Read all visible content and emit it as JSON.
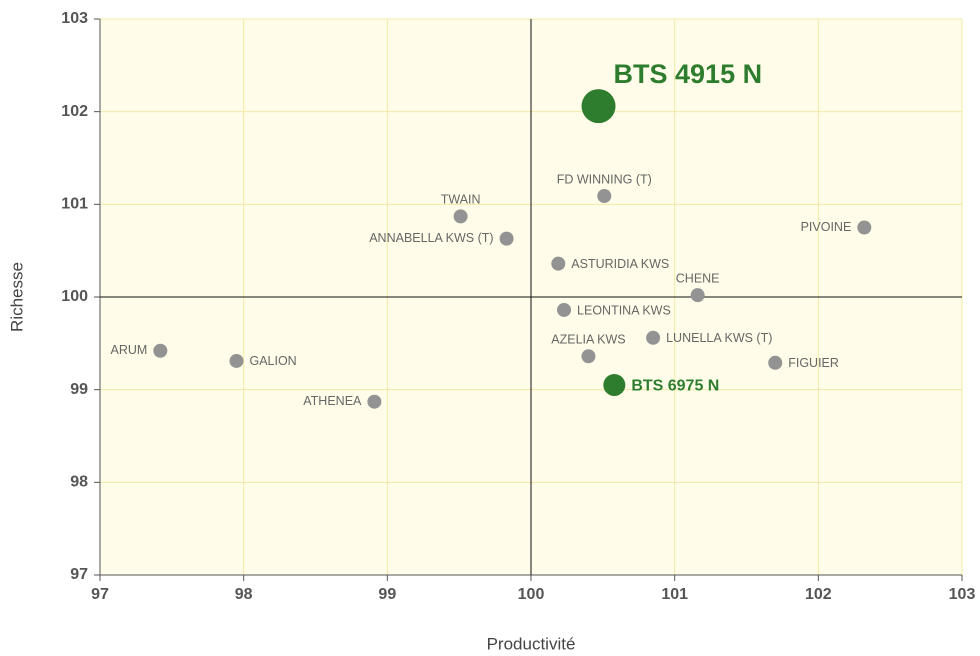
{
  "chart_data": {
    "type": "scatter",
    "xlabel": "Productivité",
    "ylabel": "Richesse",
    "xlim": [
      97,
      103
    ],
    "ylim": [
      97,
      103
    ],
    "xticks": [
      97,
      98,
      99,
      100,
      101,
      102,
      103
    ],
    "yticks": [
      97,
      98,
      99,
      100,
      101,
      102,
      103
    ],
    "grid": true,
    "reference_lines": {
      "x": 100,
      "y": 100
    },
    "points": [
      {
        "label": "BTS 4915 N",
        "x": 100.47,
        "y": 102.06,
        "color": "#2e7d2e"
      },
      {
        "label": "FD WINNING (T)",
        "x": 100.51,
        "y": 101.09,
        "color": "#939393"
      },
      {
        "label": "TWAIN",
        "x": 99.51,
        "y": 100.87,
        "color": "#939393"
      },
      {
        "label": "ANNABELLA KWS (T)",
        "x": 99.83,
        "y": 100.63,
        "color": "#939393"
      },
      {
        "label": "PIVOINE",
        "x": 102.32,
        "y": 100.75,
        "color": "#939393"
      },
      {
        "label": "ASTURIDIA KWS",
        "x": 100.19,
        "y": 100.36,
        "color": "#939393"
      },
      {
        "label": "CHENE",
        "x": 101.16,
        "y": 100.02,
        "color": "#939393"
      },
      {
        "label": "LEONTINA KWS",
        "x": 100.23,
        "y": 99.86,
        "color": "#939393"
      },
      {
        "label": "AZELIA KWS",
        "x": 100.4,
        "y": 99.36,
        "color": "#939393"
      },
      {
        "label": "LUNELLA KWS (T)",
        "x": 100.85,
        "y": 99.56,
        "color": "#939393"
      },
      {
        "label": "FIGUIER",
        "x": 101.7,
        "y": 99.29,
        "color": "#939393"
      },
      {
        "label": "BTS 6975 N",
        "x": 100.58,
        "y": 99.05,
        "color": "#2e7d2e"
      },
      {
        "label": "ARUM",
        "x": 97.42,
        "y": 99.42,
        "color": "#939393"
      },
      {
        "label": "GALION",
        "x": 97.95,
        "y": 99.31,
        "color": "#939393"
      },
      {
        "label": "ATHENEA",
        "x": 98.91,
        "y": 98.87,
        "color": "#939393"
      }
    ]
  }
}
